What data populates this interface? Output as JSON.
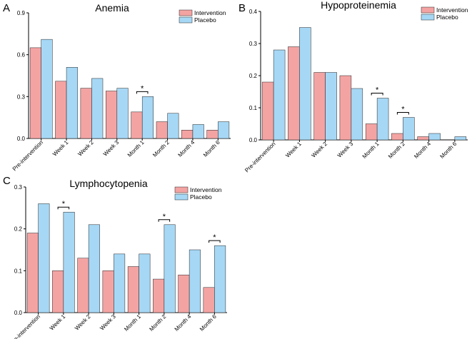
{
  "colors": {
    "intervention": "#F4A3A3",
    "placebo": "#A6D8F5",
    "stroke": "#222222"
  },
  "chart_data": [
    {
      "type": "bar",
      "panel": "A",
      "title": "Anemia",
      "categories": [
        "Pre-intervention",
        "Week 1",
        "Week 2",
        "Week 3",
        "Month 1",
        "Month 2",
        "Month 4",
        "Month 6"
      ],
      "series": [
        {
          "name": "Intervention",
          "values": [
            0.65,
            0.41,
            0.36,
            0.34,
            0.19,
            0.12,
            0.06,
            0.06
          ]
        },
        {
          "name": "Placebo",
          "values": [
            0.71,
            0.51,
            0.43,
            0.36,
            0.3,
            0.18,
            0.1,
            0.12
          ]
        }
      ],
      "ylim": [
        0,
        0.9
      ],
      "yticks": [
        "0.0",
        "0.3",
        "0.6",
        "0.9"
      ],
      "significant": [
        4
      ],
      "sig_label": "*",
      "legend": "top-right"
    },
    {
      "type": "bar",
      "panel": "B",
      "title": "Hypoproteinemia",
      "categories": [
        "Pre-intervention",
        "Week 1",
        "Week 2",
        "Week 3",
        "Month 1",
        "Month 2",
        "Month 4",
        "Month 6"
      ],
      "series": [
        {
          "name": "Intervention",
          "values": [
            0.18,
            0.29,
            0.21,
            0.2,
            0.05,
            0.02,
            0.01,
            0.0
          ]
        },
        {
          "name": "Placebo",
          "values": [
            0.28,
            0.35,
            0.21,
            0.16,
            0.13,
            0.07,
            0.02,
            0.01
          ]
        }
      ],
      "ylim": [
        0,
        0.4
      ],
      "yticks": [
        "0.0",
        "0.1",
        "0.2",
        "0.3",
        "0.4"
      ],
      "significant": [
        4,
        5
      ],
      "sig_label": "*",
      "legend": "top-right"
    },
    {
      "type": "bar",
      "panel": "C",
      "title": "Lymphocytopenia",
      "categories": [
        "Pre-intervention",
        "Week 1",
        "Week 2",
        "Week 3",
        "Month 1",
        "Month 2",
        "Month 4",
        "Month 6"
      ],
      "series": [
        {
          "name": "Intervention",
          "values": [
            0.19,
            0.1,
            0.13,
            0.1,
            0.11,
            0.08,
            0.09,
            0.06
          ]
        },
        {
          "name": "Placebo",
          "values": [
            0.26,
            0.24,
            0.21,
            0.14,
            0.14,
            0.21,
            0.15,
            0.16
          ]
        }
      ],
      "ylim": [
        0,
        0.3
      ],
      "yticks": [
        "0.0",
        "0.1",
        "0.2",
        "0.3"
      ],
      "significant": [
        1,
        5,
        7
      ],
      "sig_label": "*",
      "legend": "top-right"
    }
  ]
}
